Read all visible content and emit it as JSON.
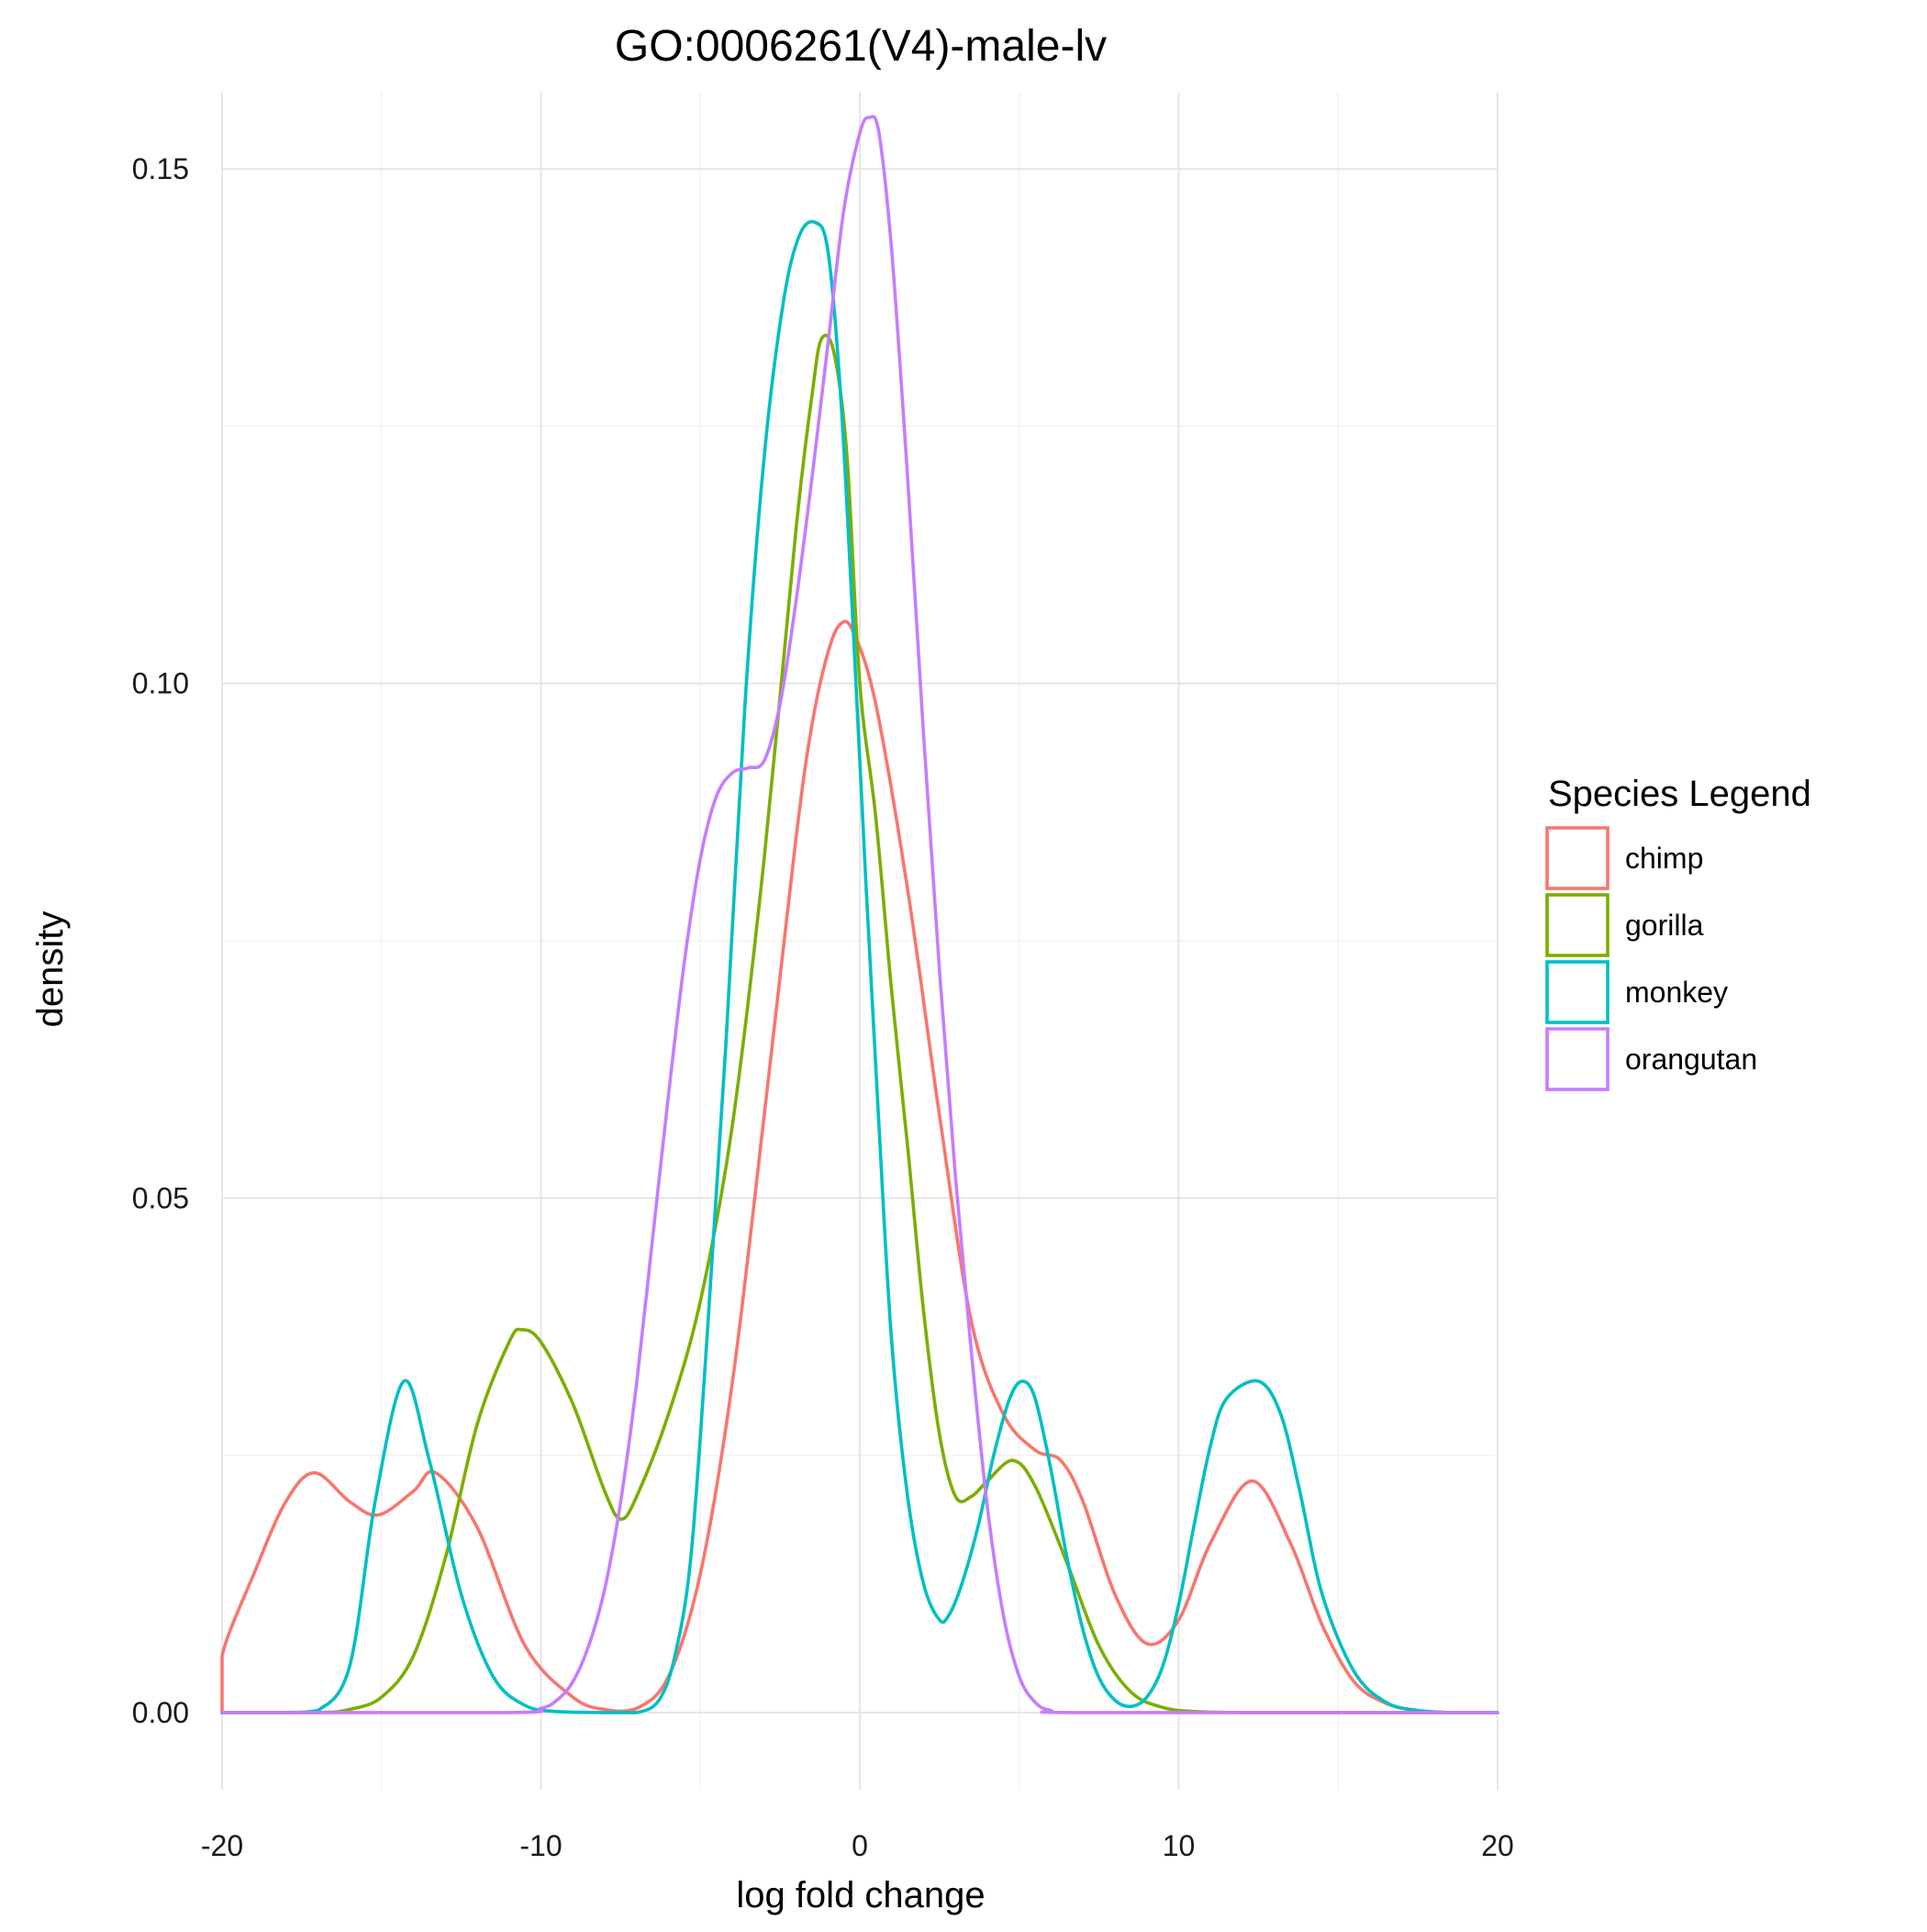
{
  "chart_data": {
    "type": "line",
    "title": "GO:0006261(V4)-male-lv",
    "xlabel": "log fold change",
    "ylabel": "density",
    "xlim": [
      -20,
      20
    ],
    "ylim": [
      -0.0075,
      0.1575
    ],
    "x_ticks": [
      -20,
      -10,
      0,
      10,
      20
    ],
    "x_tick_labels": [
      "-20",
      "-10",
      "0",
      "10",
      "20"
    ],
    "y_ticks": [
      0.0,
      0.05,
      0.1,
      0.15
    ],
    "y_tick_labels": [
      "0.00",
      "0.05",
      "0.10",
      "0.15"
    ],
    "grid": true,
    "legend": {
      "title": "Species Legend",
      "position": "right"
    },
    "series": [
      {
        "name": "chimp",
        "color": "#F8766D",
        "x": [
          -20,
          -20,
          -19,
          -18,
          -17.1,
          -16,
          -15.1,
          -14,
          -13.3,
          -12,
          -10.5,
          -9,
          -8,
          -7,
          -6,
          -5,
          -4,
          -3,
          -2,
          -1.5,
          -1,
          -0.6,
          -0.2,
          0.5,
          1.5,
          2.5,
          3.5,
          4.5,
          5.5,
          6.3,
          7,
          8,
          9,
          10,
          11,
          12.3,
          13.5,
          14.5,
          15.5,
          16.5,
          17.5,
          18.5,
          20
        ],
        "y": [
          0.0,
          0.0055,
          0.0135,
          0.0205,
          0.0233,
          0.0205,
          0.0192,
          0.0215,
          0.0233,
          0.018,
          0.0065,
          0.0015,
          0.0003,
          0.0004,
          0.0035,
          0.0135,
          0.032,
          0.058,
          0.085,
          0.096,
          0.103,
          0.1058,
          0.105,
          0.098,
          0.08,
          0.058,
          0.038,
          0.029,
          0.0255,
          0.0245,
          0.0205,
          0.0115,
          0.0067,
          0.009,
          0.0165,
          0.0225,
          0.0165,
          0.0085,
          0.003,
          0.0009,
          0.0002,
          0.0,
          0.0
        ]
      },
      {
        "name": "gorilla",
        "color": "#7CAE00",
        "x": [
          -20,
          -17,
          -16,
          -15,
          -14,
          -13,
          -12,
          -11,
          -10.6,
          -10,
          -9,
          -8,
          -7.5,
          -7,
          -6,
          -5,
          -4,
          -3,
          -2,
          -1.5,
          -1.2,
          -0.8,
          -0.4,
          0,
          0.5,
          1,
          1.5,
          2,
          2.5,
          3,
          3.5,
          4,
          4.8,
          5.5,
          6.5,
          7.5,
          8.5,
          9.5,
          10.5,
          12,
          14,
          20
        ],
        "y": [
          0.0,
          0.0,
          0.0003,
          0.0015,
          0.0055,
          0.015,
          0.028,
          0.036,
          0.0372,
          0.036,
          0.03,
          0.0215,
          0.0188,
          0.021,
          0.029,
          0.04,
          0.057,
          0.083,
          0.115,
          0.128,
          0.1335,
          0.132,
          0.122,
          0.1,
          0.087,
          0.07,
          0.055,
          0.039,
          0.027,
          0.021,
          0.021,
          0.0225,
          0.0245,
          0.022,
          0.0145,
          0.0065,
          0.002,
          0.0005,
          0.0001,
          0.0,
          0.0,
          0.0
        ]
      },
      {
        "name": "monkey",
        "color": "#00BFC4",
        "x": [
          -20,
          -18,
          -17,
          -16,
          -15.2,
          -14.3,
          -13.5,
          -12.5,
          -11.5,
          -10.5,
          -9.5,
          -8,
          -7,
          -6.3,
          -5.8,
          -5.3,
          -4.8,
          -4.2,
          -3.6,
          -3,
          -2.4,
          -1.9,
          -1.4,
          -1,
          -0.6,
          -0.2,
          0.2,
          0.6,
          1,
          1.5,
          2,
          2.5,
          2.8,
          3.2,
          3.7,
          4.2,
          4.7,
          5.1,
          5.5,
          6,
          6.5,
          7,
          7.5,
          8,
          8.5,
          9,
          9.5,
          10,
          10.5,
          11,
          11.5,
          12.5,
          13.2,
          13.8,
          14.5,
          15.5,
          16.5,
          17.5,
          18.5,
          20
        ],
        "y": [
          0.0,
          0.0,
          0.0002,
          0.0045,
          0.0205,
          0.0322,
          0.0245,
          0.0115,
          0.0035,
          0.0007,
          0.0001,
          0.0,
          0.0,
          0.0012,
          0.0055,
          0.015,
          0.036,
          0.065,
          0.098,
          0.122,
          0.137,
          0.1435,
          0.1448,
          0.142,
          0.128,
          0.105,
          0.08,
          0.057,
          0.036,
          0.021,
          0.0125,
          0.009,
          0.0095,
          0.0125,
          0.018,
          0.025,
          0.0305,
          0.0322,
          0.0305,
          0.0235,
          0.015,
          0.008,
          0.0034,
          0.0012,
          0.0006,
          0.0015,
          0.0045,
          0.0105,
          0.0185,
          0.026,
          0.0305,
          0.0322,
          0.029,
          0.0215,
          0.0115,
          0.004,
          0.001,
          0.0002,
          0.0,
          0.0
        ]
      },
      {
        "name": "orangutan",
        "color": "#C77CFF",
        "x": [
          -20,
          -11,
          -10,
          -9.5,
          -9,
          -8.5,
          -8,
          -7.5,
          -7,
          -6.5,
          -6,
          -5.5,
          -5,
          -4.5,
          -4,
          -3.5,
          -3,
          -2.5,
          -2,
          -1.5,
          -1,
          -0.5,
          0,
          0.3,
          0.6,
          1,
          1.5,
          2,
          2.5,
          3,
          3.5,
          4,
          4.5,
          5,
          5.5,
          6,
          7,
          20
        ],
        "y": [
          0.0,
          0.0,
          0.0004,
          0.0012,
          0.003,
          0.0065,
          0.012,
          0.0205,
          0.032,
          0.046,
          0.06,
          0.073,
          0.083,
          0.089,
          0.0913,
          0.0918,
          0.0925,
          0.098,
          0.108,
          0.12,
          0.133,
          0.146,
          0.1535,
          0.155,
          0.1535,
          0.142,
          0.12,
          0.095,
          0.072,
          0.052,
          0.035,
          0.02,
          0.0095,
          0.0035,
          0.001,
          0.0002,
          0.0,
          0.0
        ]
      }
    ]
  }
}
